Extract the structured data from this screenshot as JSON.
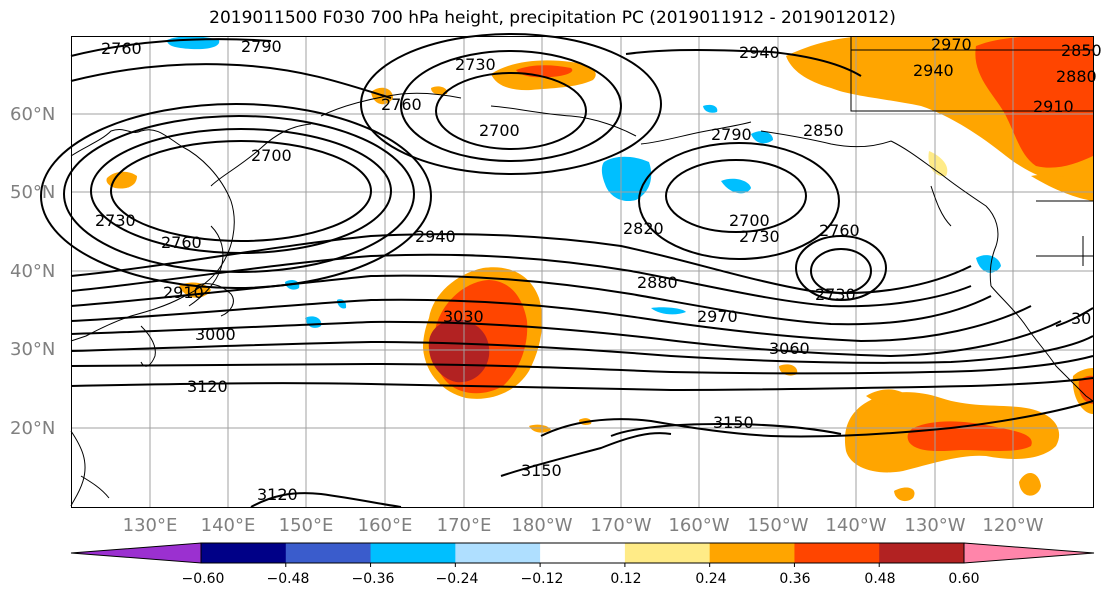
{
  "title": "2019011500 F030 700 hPa height, precipitation PC (2019011912 - 2019012012)",
  "lat_labels": [
    "60°N",
    "50°N",
    "40°N",
    "30°N",
    "20°N"
  ],
  "lon_labels": [
    "130°E",
    "140°E",
    "150°E",
    "160°E",
    "170°E",
    "180°W",
    "170°W",
    "160°W",
    "150°W",
    "140°W",
    "130°W",
    "120°W"
  ],
  "contour_labels": [
    "2760",
    "2790",
    "2730",
    "2700",
    "2940",
    "2970",
    "2940",
    "2850",
    "2880",
    "2910",
    "2760",
    "2700",
    "2790",
    "2850",
    "2700",
    "2730",
    "2820",
    "2760",
    "2730",
    "2940",
    "2880",
    "2760",
    "2730",
    "2910",
    "3030",
    "2970",
    "3000",
    "3060",
    "3120",
    "3150",
    "3150",
    "3120",
    "30"
  ],
  "colorbar": {
    "colors": [
      "#9b30d0",
      "#000087",
      "#3a5ccc",
      "#00bfff",
      "#afdfff",
      "#ffffff",
      "#ffeb87",
      "#ffa500",
      "#ff4500",
      "#b22222",
      "#ff85aa"
    ],
    "tick_labels": [
      "−0.60",
      "−0.48",
      "−0.36",
      "−0.24",
      "−0.12",
      "0.12",
      "0.24",
      "0.36",
      "0.48",
      "0.60"
    ]
  }
}
